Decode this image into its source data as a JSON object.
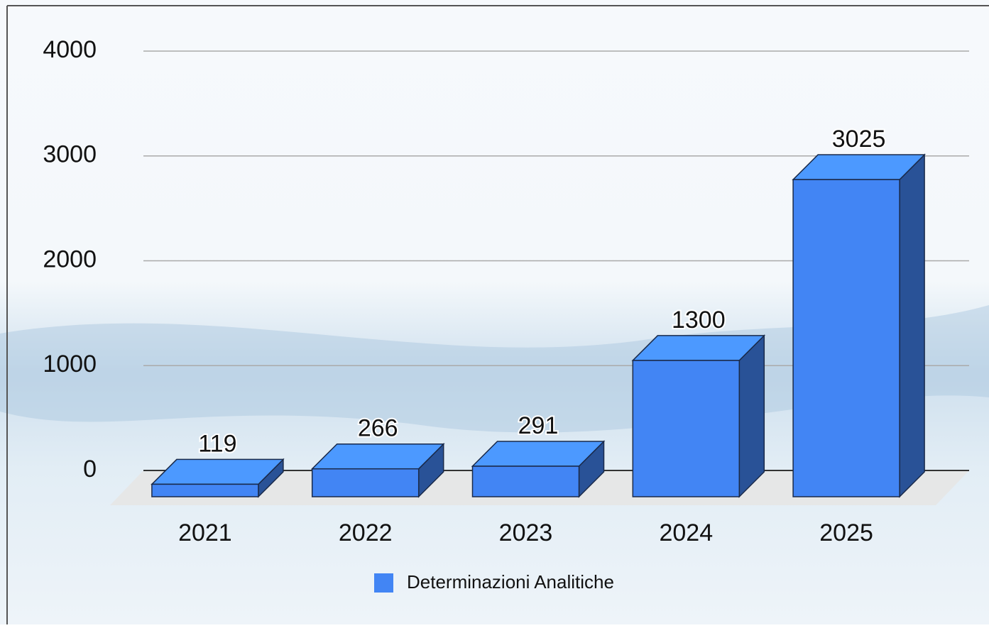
{
  "chart_data": {
    "type": "bar3d",
    "categories": [
      "2021",
      "2022",
      "2023",
      "2024",
      "2025"
    ],
    "series": [
      {
        "name": "Determinazioni Analitiche",
        "color": "#4285f4",
        "values": [
          119,
          266,
          291,
          1300,
          3025
        ]
      }
    ],
    "ylim": [
      0,
      4000
    ],
    "yticks": [
      0,
      1000,
      2000,
      3000,
      4000
    ],
    "grid": true,
    "legend": "bottom"
  }
}
